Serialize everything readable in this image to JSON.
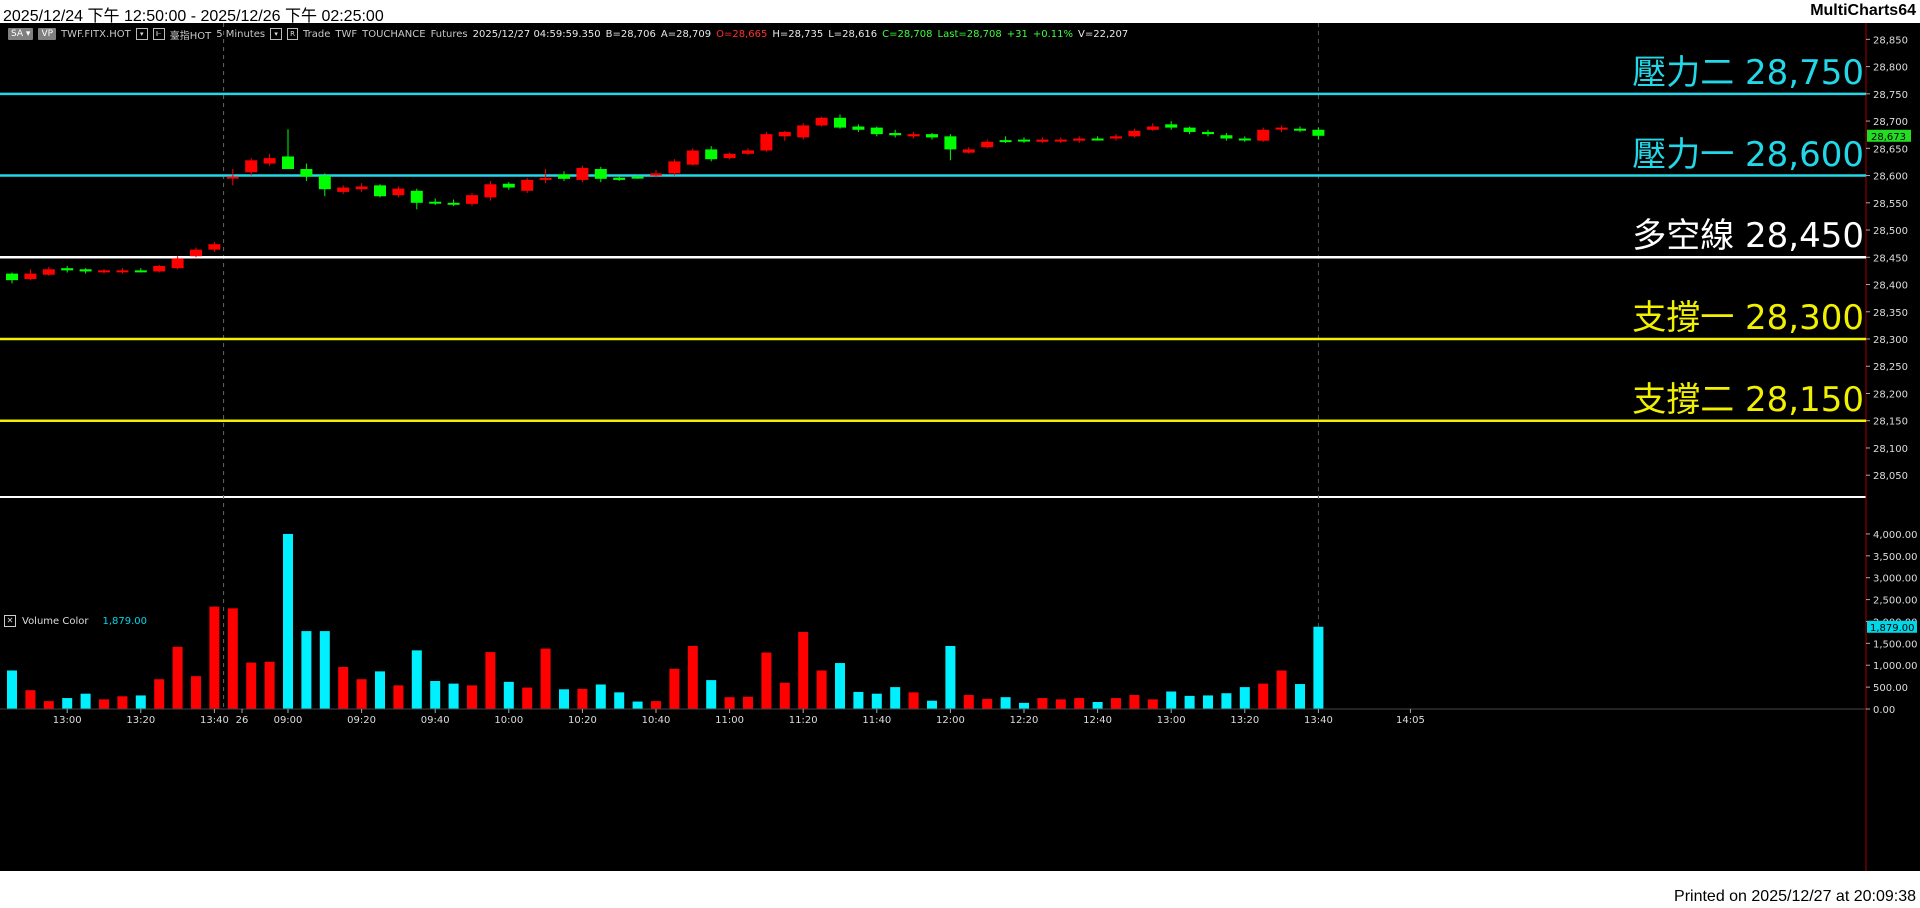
{
  "title_bar": {
    "range": "2025/12/24 下午 12:50:00 - 2025/12/26 下午 02:25:00",
    "app_name": "MultiCharts64"
  },
  "toolbar": {
    "sa_label": "SA",
    "vp_label": "VP",
    "symbol": "TWF.FITX.HOT",
    "instrument": "臺指HOT",
    "interval": "5 Minutes",
    "mode_label": "R",
    "data_type": "Trade",
    "exchange": "TWF",
    "feed": "TOUCHANCE",
    "category": "Futures",
    "datetime": "2025/12/27  04:59:59.350",
    "bid": "B=28,706",
    "ask": "A=28,709",
    "open": "O=28,665",
    "high": "H=28,735",
    "low": "L=28,616",
    "close": "C=28,708",
    "last": "Last=28,708",
    "change": "+31",
    "change_pct": "+0.11%",
    "volume": "V=22,207"
  },
  "levels": [
    {
      "label": "壓力二 28,750",
      "value": 28750,
      "color": "#22d8e8"
    },
    {
      "label": "壓力一 28,600",
      "value": 28600,
      "color": "#22d8e8"
    },
    {
      "label": "多空線 28,450",
      "value": 28450,
      "color": "#ffffff"
    },
    {
      "label": "支撐一 28,300",
      "value": 28300,
      "color": "#f0f000"
    },
    {
      "label": "支撐二 28,150",
      "value": 28150,
      "color": "#f0f000"
    }
  ],
  "price_axis": {
    "ticks": [
      "28,850",
      "28,800",
      "28,750",
      "28,700",
      "28,650",
      "28,600",
      "28,550",
      "28,500",
      "28,450",
      "28,400",
      "28,350",
      "28,300",
      "28,250",
      "28,200",
      "28,150",
      "28,100",
      "28,050"
    ],
    "last_price": "28,673",
    "last_value": 28673
  },
  "volume_panel": {
    "legend_label": "Volume Color",
    "legend_value": "1,879.00",
    "ticks": [
      "4,000.00",
      "3,500.00",
      "3,000.00",
      "2,500.00",
      "2,000.00",
      "1,500.00",
      "1,000.00",
      "500.00",
      "0.00"
    ],
    "last_volume_label": "1,879.00"
  },
  "time_axis": [
    {
      "label": "13:00",
      "index": 3
    },
    {
      "label": "13:20",
      "index": 7
    },
    {
      "label": "13:40",
      "index": 11
    },
    {
      "label": "26",
      "index": 12.5
    },
    {
      "label": "09:00",
      "index": 15
    },
    {
      "label": "09:20",
      "index": 19
    },
    {
      "label": "09:40",
      "index": 23
    },
    {
      "label": "10:00",
      "index": 27
    },
    {
      "label": "10:20",
      "index": 31
    },
    {
      "label": "10:40",
      "index": 35
    },
    {
      "label": "11:00",
      "index": 39
    },
    {
      "label": "11:20",
      "index": 43
    },
    {
      "label": "11:40",
      "index": 47
    },
    {
      "label": "12:00",
      "index": 51
    },
    {
      "label": "12:20",
      "index": 55
    },
    {
      "label": "12:40",
      "index": 59
    },
    {
      "label": "13:00",
      "index": 63
    },
    {
      "label": "13:20",
      "index": 67
    },
    {
      "label": "13:40",
      "index": 71
    },
    {
      "label": "14:05",
      "index": 76
    }
  ],
  "session_break_index": 11.5,
  "chart_data": {
    "type": "candlestick",
    "price_range": [
      28010,
      28880
    ],
    "volume_range": [
      0,
      4250
    ],
    "candles": [
      {
        "o": 28420,
        "h": 28422,
        "l": 28402,
        "c": 28408,
        "v": 880
      },
      {
        "o": 28410,
        "h": 28428,
        "l": 28408,
        "c": 28420,
        "v": 430
      },
      {
        "o": 28418,
        "h": 28432,
        "l": 28416,
        "c": 28428,
        "v": 180
      },
      {
        "o": 28430,
        "h": 28434,
        "l": 28422,
        "c": 28426,
        "v": 250
      },
      {
        "o": 28428,
        "h": 28430,
        "l": 28420,
        "c": 28424,
        "v": 350
      },
      {
        "o": 28424,
        "h": 28428,
        "l": 28420,
        "c": 28426,
        "v": 220
      },
      {
        "o": 28424,
        "h": 28430,
        "l": 28420,
        "c": 28426,
        "v": 290
      },
      {
        "o": 28426,
        "h": 28430,
        "l": 28422,
        "c": 28424,
        "v": 310
      },
      {
        "o": 28424,
        "h": 28436,
        "l": 28422,
        "c": 28434,
        "v": 680
      },
      {
        "o": 28430,
        "h": 28452,
        "l": 28428,
        "c": 28448,
        "v": 1420
      },
      {
        "o": 28452,
        "h": 28468,
        "l": 28450,
        "c": 28464,
        "v": 750
      },
      {
        "o": 28464,
        "h": 28478,
        "l": 28460,
        "c": 28474,
        "v": 2340
      },
      {
        "o": 28596,
        "h": 28612,
        "l": 28582,
        "c": 28598,
        "v": 2300
      },
      {
        "o": 28606,
        "h": 28632,
        "l": 28600,
        "c": 28628,
        "v": 1060
      },
      {
        "o": 28622,
        "h": 28640,
        "l": 28618,
        "c": 28632,
        "v": 1080
      },
      {
        "o": 28635,
        "h": 28685,
        "l": 28612,
        "c": 28612,
        "v": 4000
      },
      {
        "o": 28612,
        "h": 28622,
        "l": 28590,
        "c": 28598,
        "v": 1780
      },
      {
        "o": 28600,
        "h": 28604,
        "l": 28562,
        "c": 28575,
        "v": 1780
      },
      {
        "o": 28570,
        "h": 28582,
        "l": 28566,
        "c": 28578,
        "v": 960
      },
      {
        "o": 28575,
        "h": 28586,
        "l": 28570,
        "c": 28580,
        "v": 680
      },
      {
        "o": 28582,
        "h": 28584,
        "l": 28560,
        "c": 28562,
        "v": 860
      },
      {
        "o": 28564,
        "h": 28580,
        "l": 28560,
        "c": 28576,
        "v": 540
      },
      {
        "o": 28572,
        "h": 28576,
        "l": 28538,
        "c": 28550,
        "v": 1340
      },
      {
        "o": 28552,
        "h": 28558,
        "l": 28546,
        "c": 28550,
        "v": 640
      },
      {
        "o": 28550,
        "h": 28556,
        "l": 28544,
        "c": 28548,
        "v": 580
      },
      {
        "o": 28548,
        "h": 28568,
        "l": 28544,
        "c": 28564,
        "v": 540
      },
      {
        "o": 28560,
        "h": 28590,
        "l": 28554,
        "c": 28584,
        "v": 1300
      },
      {
        "o": 28585,
        "h": 28588,
        "l": 28574,
        "c": 28578,
        "v": 620
      },
      {
        "o": 28572,
        "h": 28596,
        "l": 28568,
        "c": 28592,
        "v": 490
      },
      {
        "o": 28592,
        "h": 28612,
        "l": 28586,
        "c": 28596,
        "v": 1380
      },
      {
        "o": 28602,
        "h": 28608,
        "l": 28590,
        "c": 28594,
        "v": 450
      },
      {
        "o": 28592,
        "h": 28618,
        "l": 28588,
        "c": 28614,
        "v": 460
      },
      {
        "o": 28612,
        "h": 28616,
        "l": 28588,
        "c": 28594,
        "v": 560
      },
      {
        "o": 28596,
        "h": 28600,
        "l": 28590,
        "c": 28592,
        "v": 380
      },
      {
        "o": 28598,
        "h": 28602,
        "l": 28594,
        "c": 28596,
        "v": 170
      },
      {
        "o": 28600,
        "h": 28610,
        "l": 28596,
        "c": 28604,
        "v": 180
      },
      {
        "o": 28604,
        "h": 28630,
        "l": 28600,
        "c": 28626,
        "v": 920
      },
      {
        "o": 28620,
        "h": 28650,
        "l": 28618,
        "c": 28646,
        "v": 1440
      },
      {
        "o": 28648,
        "h": 28654,
        "l": 28626,
        "c": 28630,
        "v": 660
      },
      {
        "o": 28632,
        "h": 28642,
        "l": 28630,
        "c": 28640,
        "v": 270
      },
      {
        "o": 28640,
        "h": 28650,
        "l": 28638,
        "c": 28646,
        "v": 280
      },
      {
        "o": 28646,
        "h": 28680,
        "l": 28644,
        "c": 28676,
        "v": 1290
      },
      {
        "o": 28672,
        "h": 28682,
        "l": 28664,
        "c": 28680,
        "v": 600
      },
      {
        "o": 28670,
        "h": 28696,
        "l": 28666,
        "c": 28692,
        "v": 1760
      },
      {
        "o": 28692,
        "h": 28708,
        "l": 28690,
        "c": 28706,
        "v": 880
      },
      {
        "o": 28706,
        "h": 28712,
        "l": 28686,
        "c": 28688,
        "v": 1050
      },
      {
        "o": 28690,
        "h": 28694,
        "l": 28680,
        "c": 28684,
        "v": 390
      },
      {
        "o": 28688,
        "h": 28690,
        "l": 28672,
        "c": 28676,
        "v": 350
      },
      {
        "o": 28678,
        "h": 28684,
        "l": 28670,
        "c": 28674,
        "v": 500
      },
      {
        "o": 28672,
        "h": 28680,
        "l": 28668,
        "c": 28676,
        "v": 380
      },
      {
        "o": 28676,
        "h": 28678,
        "l": 28666,
        "c": 28670,
        "v": 190
      },
      {
        "o": 28672,
        "h": 28676,
        "l": 28628,
        "c": 28648,
        "v": 1440
      },
      {
        "o": 28642,
        "h": 28652,
        "l": 28640,
        "c": 28648,
        "v": 320
      },
      {
        "o": 28652,
        "h": 28666,
        "l": 28650,
        "c": 28662,
        "v": 230
      },
      {
        "o": 28665,
        "h": 28672,
        "l": 28660,
        "c": 28664,
        "v": 270
      },
      {
        "o": 28666,
        "h": 28670,
        "l": 28660,
        "c": 28664,
        "v": 140
      },
      {
        "o": 28662,
        "h": 28670,
        "l": 28660,
        "c": 28666,
        "v": 250
      },
      {
        "o": 28664,
        "h": 28670,
        "l": 28660,
        "c": 28666,
        "v": 220
      },
      {
        "o": 28664,
        "h": 28672,
        "l": 28660,
        "c": 28668,
        "v": 250
      },
      {
        "o": 28668,
        "h": 28672,
        "l": 28664,
        "c": 28666,
        "v": 160
      },
      {
        "o": 28668,
        "h": 28676,
        "l": 28664,
        "c": 28672,
        "v": 250
      },
      {
        "o": 28672,
        "h": 28686,
        "l": 28670,
        "c": 28682,
        "v": 320
      },
      {
        "o": 28684,
        "h": 28696,
        "l": 28682,
        "c": 28690,
        "v": 220
      },
      {
        "o": 28694,
        "h": 28700,
        "l": 28684,
        "c": 28688,
        "v": 400
      },
      {
        "o": 28688,
        "h": 28690,
        "l": 28676,
        "c": 28680,
        "v": 300
      },
      {
        "o": 28680,
        "h": 28684,
        "l": 28672,
        "c": 28676,
        "v": 310
      },
      {
        "o": 28674,
        "h": 28678,
        "l": 28664,
        "c": 28668,
        "v": 360
      },
      {
        "o": 28668,
        "h": 28672,
        "l": 28662,
        "c": 28666,
        "v": 500
      },
      {
        "o": 28664,
        "h": 28688,
        "l": 28662,
        "c": 28684,
        "v": 580
      },
      {
        "o": 28686,
        "h": 28692,
        "l": 28680,
        "c": 28688,
        "v": 880
      },
      {
        "o": 28686,
        "h": 28690,
        "l": 28680,
        "c": 28684,
        "v": 570
      },
      {
        "o": 28684,
        "h": 28688,
        "l": 28666,
        "c": 28673,
        "v": 1879
      }
    ]
  },
  "footer": {
    "printed": "Printed on 2025/12/27 at 20:09:38"
  },
  "colors": {
    "up": "#ff0000",
    "down": "#00ff00",
    "vol_up": "#ff0000",
    "vol_down": "#00f0ff",
    "axis_text": "#dddddd"
  }
}
